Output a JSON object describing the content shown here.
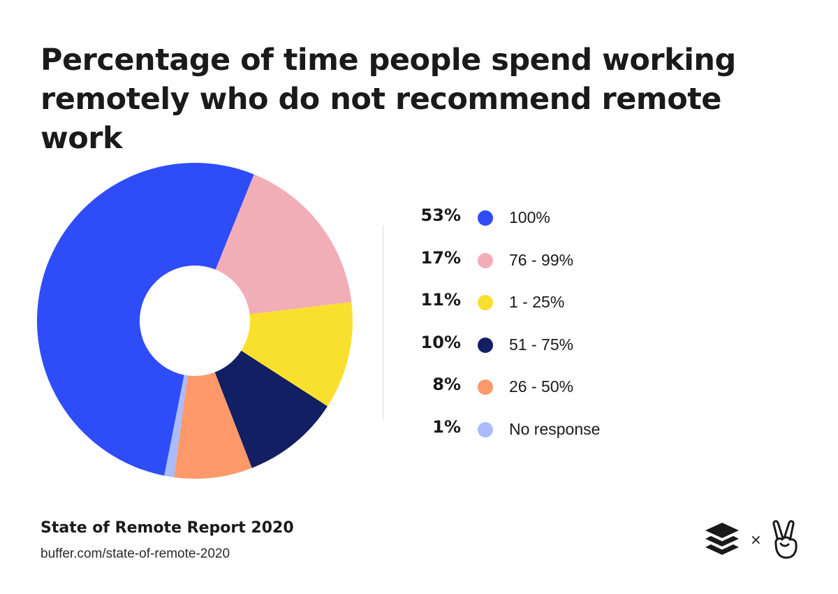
{
  "chart_data": {
    "type": "pie",
    "title": "Percentage of time people spend working remotely who do not recommend remote work",
    "slices": [
      {
        "label": "100%",
        "value": 53,
        "pct_label": "53%",
        "color": "#2f4cf9"
      },
      {
        "label": "76 - 99%",
        "value": 17,
        "pct_label": "17%",
        "color": "#f2aeb7"
      },
      {
        "label": "1 - 25%",
        "value": 11,
        "pct_label": "11%",
        "color": "#fae02e"
      },
      {
        "label": "51 - 75%",
        "value": 10,
        "pct_label": "10%",
        "color": "#121f63"
      },
      {
        "label": "26 - 50%",
        "value": 8,
        "pct_label": "8%",
        "color": "#ff996a"
      },
      {
        "label": "No response",
        "value": 1,
        "pct_label": "1%",
        "color": "#aabcff"
      }
    ],
    "draw_order": [
      "76 - 99%",
      "1 - 25%",
      "51 - 75%",
      "26 - 50%",
      "No response",
      "100%"
    ],
    "legend_position": "right"
  },
  "footer": {
    "report_title": "State of Remote Report 2020",
    "url": "buffer.com/state-of-remote-2020"
  },
  "logos": {
    "buffer_icon": "buffer-stack-icon",
    "times": "×",
    "partner_icon": "peace-hand-icon"
  }
}
